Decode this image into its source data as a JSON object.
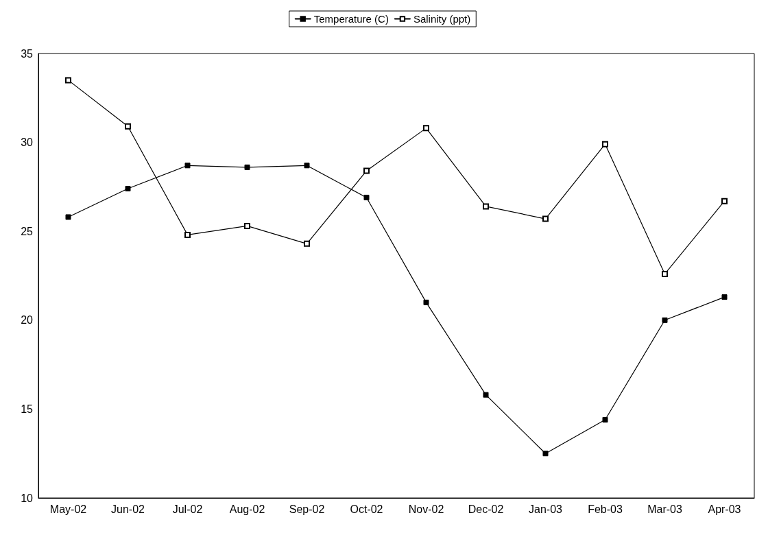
{
  "chart_data": {
    "type": "line",
    "categories": [
      "May-02",
      "Jun-02",
      "Jul-02",
      "Aug-02",
      "Sep-02",
      "Oct-02",
      "Nov-02",
      "Dec-02",
      "Jan-03",
      "Feb-03",
      "Mar-03",
      "Apr-03"
    ],
    "series": [
      {
        "name": "Temperature (C)",
        "color": "#000000",
        "values": [
          25.8,
          27.4,
          28.7,
          28.6,
          28.7,
          26.9,
          21.0,
          15.8,
          12.5,
          14.4,
          20.0,
          21.3
        ]
      },
      {
        "name": "Salinity (ppt)",
        "color": "#000000",
        "values": [
          33.5,
          30.9,
          24.8,
          25.3,
          24.3,
          28.4,
          30.8,
          26.4,
          25.7,
          29.9,
          22.6,
          26.7
        ]
      }
    ],
    "ylim": [
      10,
      35
    ],
    "yticks": [
      10,
      15,
      20,
      25,
      30,
      35
    ],
    "grid": false,
    "legend": "top",
    "marker": "square",
    "line_style": "solid"
  }
}
